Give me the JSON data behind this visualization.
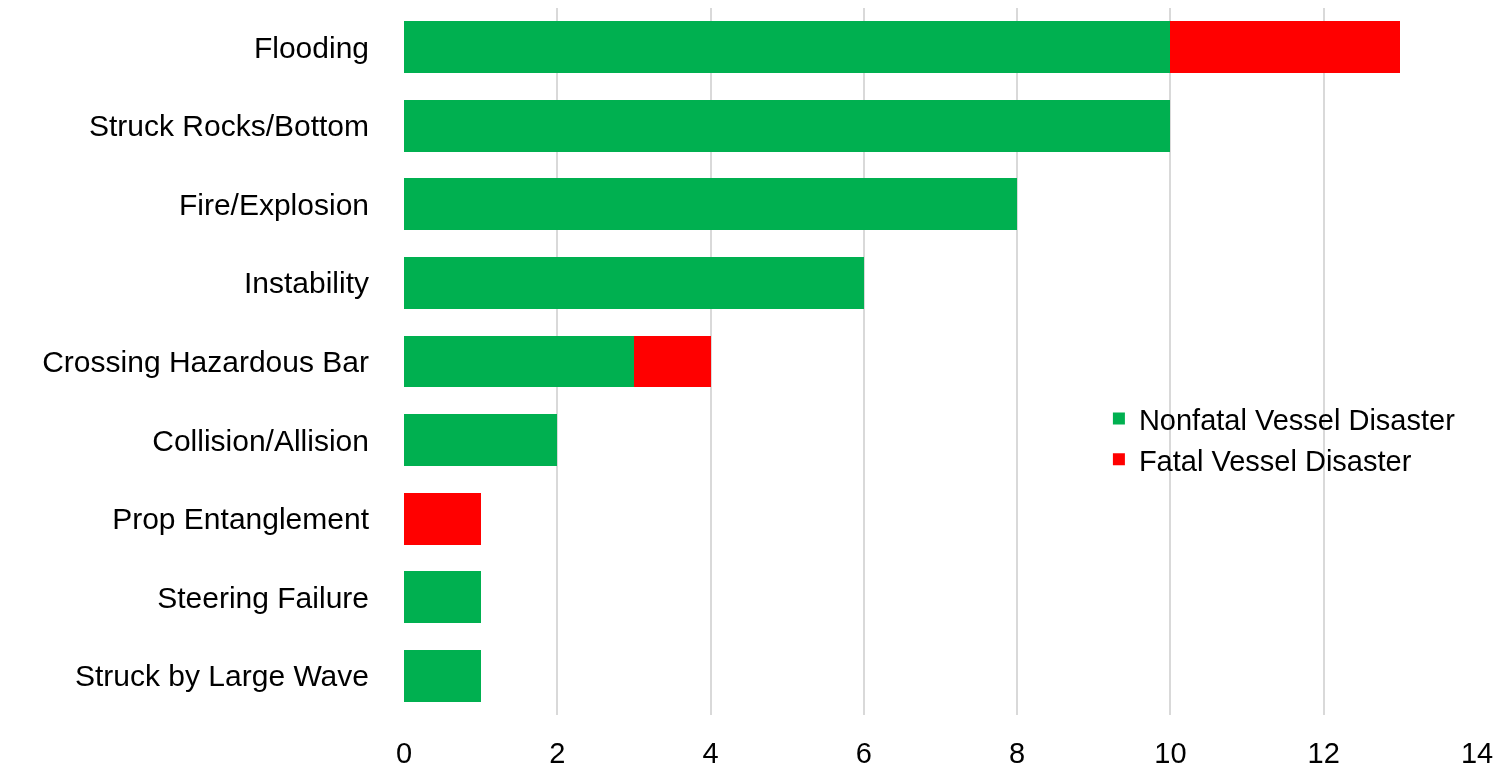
{
  "chart_data": {
    "type": "bar",
    "orientation": "horizontal",
    "stacked": true,
    "categories": [
      "Flooding",
      "Struck Rocks/Bottom",
      "Fire/Explosion",
      "Instability",
      "Crossing Hazardous Bar",
      "Collision/Allision",
      "Prop Entanglement",
      "Steering Failure",
      "Struck by Large Wave"
    ],
    "series": [
      {
        "name": "Nonfatal Vessel Disaster",
        "color": "#00b050",
        "values": [
          10,
          10,
          8,
          6,
          3,
          2,
          null,
          1,
          1
        ]
      },
      {
        "name": "Fatal Vessel Disaster",
        "color": "#ff0000",
        "values": [
          3,
          null,
          null,
          null,
          1,
          null,
          1,
          null,
          null
        ]
      }
    ],
    "xlim": [
      0,
      14
    ],
    "xticks": [
      0,
      2,
      4,
      6,
      8,
      10,
      12,
      14
    ],
    "grid": "x",
    "legend": "right"
  }
}
